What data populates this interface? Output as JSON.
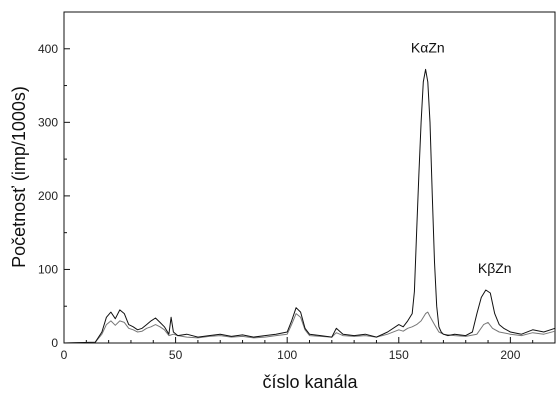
{
  "chart_data": {
    "type": "line",
    "xlabel": "číslo kanála",
    "ylabel": "Početnosť (imp/1000s)",
    "xlim": [
      0,
      220
    ],
    "ylim": [
      0,
      450
    ],
    "xticks": [
      0,
      50,
      100,
      150,
      200
    ],
    "yticks": [
      0,
      100,
      200,
      300,
      400
    ],
    "grid": false,
    "annotations": [
      {
        "text": "KαZn",
        "x": 163,
        "y": 395
      },
      {
        "text": "KβZn",
        "x": 193,
        "y": 95
      }
    ],
    "series": [
      {
        "color": "#111111",
        "x": [
          0,
          14,
          17,
          19,
          21,
          23,
          25,
          27,
          29,
          31,
          33,
          35,
          37,
          39,
          41,
          43,
          45,
          47,
          48,
          49,
          51,
          55,
          60,
          65,
          70,
          75,
          80,
          85,
          90,
          95,
          100,
          102,
          104,
          106,
          108,
          110,
          115,
          120,
          122,
          125,
          130,
          135,
          140,
          145,
          150,
          152,
          154,
          156,
          157,
          158,
          159,
          160,
          161,
          162,
          163,
          164,
          165,
          166,
          167,
          168,
          169,
          170,
          172,
          175,
          180,
          183,
          185,
          187,
          189,
          191,
          193,
          195,
          197,
          200,
          205,
          210,
          215,
          220
        ],
        "y": [
          0,
          1,
          15,
          35,
          42,
          33,
          45,
          40,
          25,
          22,
          18,
          20,
          25,
          30,
          34,
          28,
          22,
          12,
          35,
          15,
          10,
          12,
          8,
          10,
          12,
          9,
          11,
          8,
          10,
          12,
          15,
          30,
          48,
          42,
          20,
          12,
          10,
          8,
          20,
          12,
          10,
          12,
          8,
          15,
          25,
          22,
          30,
          40,
          70,
          150,
          230,
          300,
          355,
          372,
          355,
          300,
          200,
          110,
          50,
          22,
          15,
          12,
          10,
          12,
          10,
          15,
          40,
          62,
          72,
          68,
          40,
          25,
          20,
          15,
          12,
          18,
          15,
          20
        ]
      },
      {
        "color": "#777777",
        "x": [
          0,
          14,
          17,
          19,
          21,
          23,
          25,
          27,
          29,
          31,
          33,
          35,
          37,
          39,
          41,
          43,
          45,
          47,
          49,
          51,
          55,
          60,
          65,
          70,
          75,
          80,
          85,
          90,
          95,
          100,
          102,
          104,
          106,
          108,
          110,
          115,
          120,
          122,
          125,
          130,
          135,
          140,
          145,
          150,
          152,
          154,
          156,
          158,
          160,
          162,
          163,
          164,
          166,
          168,
          170,
          175,
          180,
          185,
          188,
          190,
          192,
          195,
          200,
          205,
          210,
          215,
          220
        ],
        "y": [
          0,
          1,
          12,
          25,
          30,
          24,
          30,
          28,
          20,
          18,
          15,
          16,
          20,
          22,
          25,
          22,
          18,
          10,
          12,
          10,
          8,
          7,
          9,
          10,
          8,
          9,
          7,
          8,
          10,
          12,
          25,
          40,
          35,
          18,
          10,
          9,
          8,
          14,
          10,
          9,
          10,
          8,
          12,
          18,
          16,
          20,
          22,
          25,
          30,
          40,
          42,
          36,
          25,
          15,
          12,
          10,
          9,
          12,
          25,
          28,
          20,
          15,
          12,
          10,
          14,
          12,
          16
        ]
      }
    ]
  }
}
